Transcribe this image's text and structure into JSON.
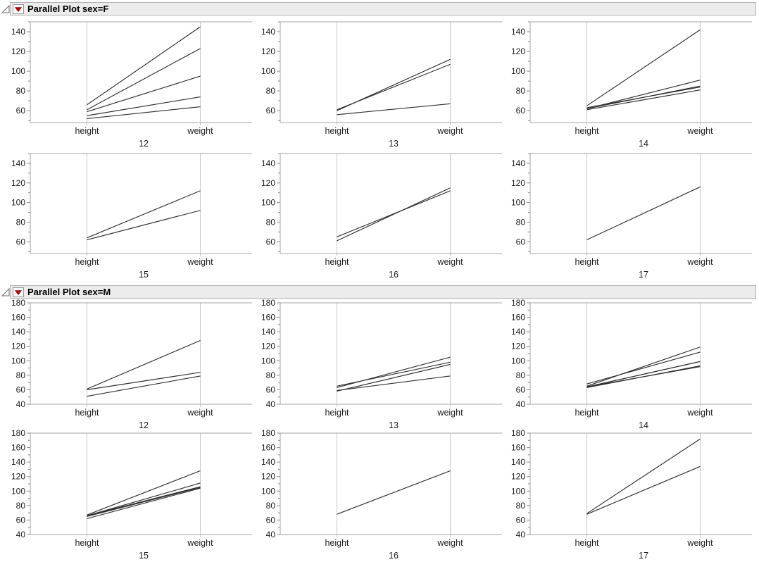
{
  "colors": {
    "data_line": "#2f2f2f",
    "plot_frame": "#a3a3a3",
    "inner_axis": "#c9c9c9",
    "tick": "#8c8c8c",
    "text": "#1c1c1c",
    "header_bg": "#ececec",
    "header_border": "#b2b2b2",
    "red_triangle": "#c00000",
    "disclosure_gray": "#8a8a8a"
  },
  "sections": [
    {
      "title": "Parallel Plot sex=F",
      "disclosure_icon": "open-triangle",
      "menu_icon": "red-triangle-menu"
    },
    {
      "title": "Parallel Plot sex=M",
      "disclosure_icon": "open-triangle",
      "menu_icon": "red-triangle-menu"
    }
  ],
  "axis_labels": [
    "height",
    "weight"
  ],
  "chart_data": [
    {
      "type": "line",
      "section": "sex=F",
      "group": "12",
      "x_categories": [
        "height",
        "weight"
      ],
      "ylim": [
        48,
        150
      ],
      "yticks": [
        60,
        80,
        100,
        120,
        140
      ],
      "ytick_minor_step": 10,
      "lines": [
        [
          66,
          145
        ],
        [
          61,
          123
        ],
        [
          59,
          95
        ],
        [
          55,
          74
        ],
        [
          52,
          64
        ]
      ]
    },
    {
      "type": "line",
      "section": "sex=F",
      "group": "13",
      "x_categories": [
        "height",
        "weight"
      ],
      "ylim": [
        48,
        150
      ],
      "yticks": [
        60,
        80,
        100,
        120,
        140
      ],
      "ytick_minor_step": 10,
      "lines": [
        [
          60,
          112
        ],
        [
          61,
          107
        ],
        [
          56,
          67
        ]
      ]
    },
    {
      "type": "line",
      "section": "sex=F",
      "group": "14",
      "x_categories": [
        "height",
        "weight"
      ],
      "ylim": [
        48,
        150
      ],
      "yticks": [
        60,
        80,
        100,
        120,
        140
      ],
      "ytick_minor_step": 10,
      "lines": [
        [
          65,
          142
        ],
        [
          62,
          91
        ],
        [
          62,
          85
        ],
        [
          63,
          84
        ],
        [
          61,
          81
        ]
      ]
    },
    {
      "type": "line",
      "section": "sex=F",
      "group": "15",
      "x_categories": [
        "height",
        "weight"
      ],
      "ylim": [
        48,
        150
      ],
      "yticks": [
        60,
        80,
        100,
        120,
        140
      ],
      "ytick_minor_step": 10,
      "lines": [
        [
          64,
          112
        ],
        [
          62,
          92
        ]
      ]
    },
    {
      "type": "line",
      "section": "sex=F",
      "group": "16",
      "x_categories": [
        "height",
        "weight"
      ],
      "ylim": [
        48,
        150
      ],
      "yticks": [
        60,
        80,
        100,
        120,
        140
      ],
      "ytick_minor_step": 10,
      "lines": [
        [
          65,
          112
        ],
        [
          61,
          115
        ]
      ]
    },
    {
      "type": "line",
      "section": "sex=F",
      "group": "17",
      "x_categories": [
        "height",
        "weight"
      ],
      "ylim": [
        48,
        150
      ],
      "yticks": [
        60,
        80,
        100,
        120,
        140
      ],
      "ytick_minor_step": 10,
      "lines": [
        [
          62,
          116
        ]
      ]
    },
    {
      "type": "line",
      "section": "sex=M",
      "group": "12",
      "x_categories": [
        "height",
        "weight"
      ],
      "ylim": [
        40,
        180
      ],
      "yticks": [
        40,
        60,
        80,
        100,
        120,
        140,
        160,
        180
      ],
      "ytick_minor_step": 10,
      "lines": [
        [
          61,
          128
        ],
        [
          60,
          84
        ],
        [
          51,
          79
        ]
      ]
    },
    {
      "type": "line",
      "section": "sex=M",
      "group": "13",
      "x_categories": [
        "height",
        "weight"
      ],
      "ylim": [
        40,
        180
      ],
      "yticks": [
        40,
        60,
        80,
        100,
        120,
        140,
        160,
        180
      ],
      "ytick_minor_step": 10,
      "lines": [
        [
          63,
          105
        ],
        [
          65,
          98
        ],
        [
          58,
          95
        ],
        [
          59,
          79
        ]
      ]
    },
    {
      "type": "line",
      "section": "sex=M",
      "group": "14",
      "x_categories": [
        "height",
        "weight"
      ],
      "ylim": [
        40,
        180
      ],
      "yticks": [
        40,
        60,
        80,
        100,
        120,
        140,
        160,
        180
      ],
      "ytick_minor_step": 10,
      "lines": [
        [
          65,
          119
        ],
        [
          68,
          112
        ],
        [
          64,
          99
        ],
        [
          64,
          99
        ],
        [
          63,
          93
        ],
        [
          64,
          92
        ]
      ]
    },
    {
      "type": "line",
      "section": "sex=M",
      "group": "15",
      "x_categories": [
        "height",
        "weight"
      ],
      "ylim": [
        40,
        180
      ],
      "yticks": [
        40,
        60,
        80,
        100,
        120,
        140,
        160,
        180
      ],
      "ytick_minor_step": 10,
      "lines": [
        [
          67,
          128
        ],
        [
          66,
          111
        ],
        [
          66,
          106
        ],
        [
          65,
          105
        ],
        [
          62,
          104
        ]
      ]
    },
    {
      "type": "line",
      "section": "sex=M",
      "group": "16",
      "x_categories": [
        "height",
        "weight"
      ],
      "ylim": [
        40,
        180
      ],
      "yticks": [
        40,
        60,
        80,
        100,
        120,
        140,
        160,
        180
      ],
      "ytick_minor_step": 10,
      "lines": [
        [
          68,
          128
        ]
      ]
    },
    {
      "type": "line",
      "section": "sex=M",
      "group": "17",
      "x_categories": [
        "height",
        "weight"
      ],
      "ylim": [
        40,
        180
      ],
      "yticks": [
        40,
        60,
        80,
        100,
        120,
        140,
        160,
        180
      ],
      "ytick_minor_step": 10,
      "lines": [
        [
          69,
          172
        ],
        [
          68,
          134
        ]
      ]
    }
  ]
}
